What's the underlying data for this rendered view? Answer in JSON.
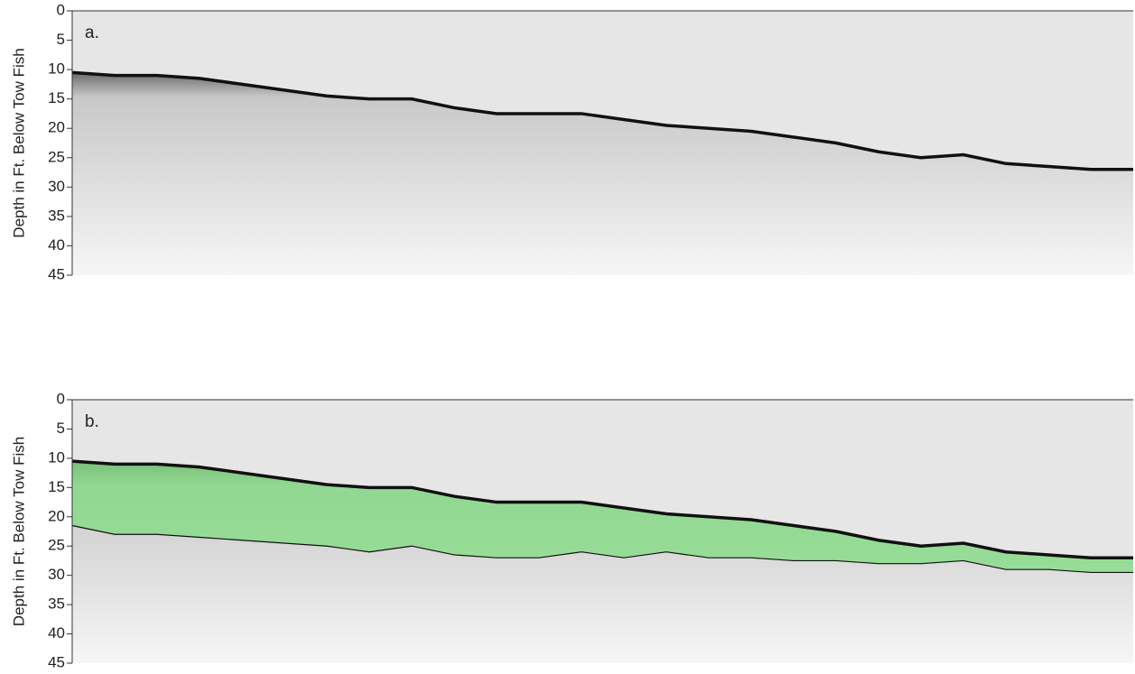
{
  "chart_data": [
    {
      "type": "profile",
      "annotation": "a.",
      "y_label": "Depth in Ft. Below Tow Fish",
      "y_inverted": true,
      "ylim": [
        0,
        45
      ],
      "yticks": [
        0,
        5,
        10,
        15,
        20,
        25,
        30,
        35,
        40,
        45
      ],
      "categories": [
        null,
        null,
        null,
        null,
        null,
        null,
        null,
        null,
        null,
        null,
        null,
        null,
        null,
        null,
        null,
        null,
        null,
        null,
        null,
        null,
        null,
        null,
        null,
        null,
        null,
        null
      ],
      "values": [
        10.5,
        11,
        11,
        11.5,
        12.5,
        13.5,
        14.5,
        15,
        15,
        16.5,
        17.5,
        17.5,
        17.5,
        18.5,
        19.5,
        20,
        20.5,
        21.5,
        22.5,
        24,
        25,
        24.5,
        26,
        26.5,
        27,
        27
      ],
      "color": "#111111"
    },
    {
      "type": "profile",
      "annotation": "b.",
      "y_label": "Depth in Ft. Below Tow Fish",
      "y_inverted": true,
      "ylim": [
        0,
        45
      ],
      "yticks": [
        0,
        5,
        10,
        15,
        20,
        25,
        30,
        35,
        40,
        45
      ],
      "categories": [
        null,
        null,
        null,
        null,
        null,
        null,
        null,
        null,
        null,
        null,
        null,
        null,
        null,
        null,
        null,
        null,
        null,
        null,
        null,
        null,
        null,
        null,
        null,
        null,
        null,
        null
      ],
      "values": [
        10.5,
        11,
        11,
        11.5,
        12.5,
        13.5,
        14.5,
        15,
        15,
        16.5,
        17.5,
        17.5,
        17.5,
        18.5,
        19.5,
        20,
        20.5,
        21.5,
        22.5,
        24,
        25,
        24.5,
        26,
        26.5,
        27,
        27
      ],
      "layer_base": [
        21.5,
        23,
        23,
        23.5,
        24,
        24.5,
        25,
        26,
        25,
        26.5,
        27,
        27,
        26,
        27,
        26,
        27,
        27,
        27.5,
        27.5,
        28,
        28,
        27.5,
        29,
        29,
        29.5,
        29.5
      ],
      "color": "#111111",
      "fill_color": "#7fdc7f"
    }
  ]
}
